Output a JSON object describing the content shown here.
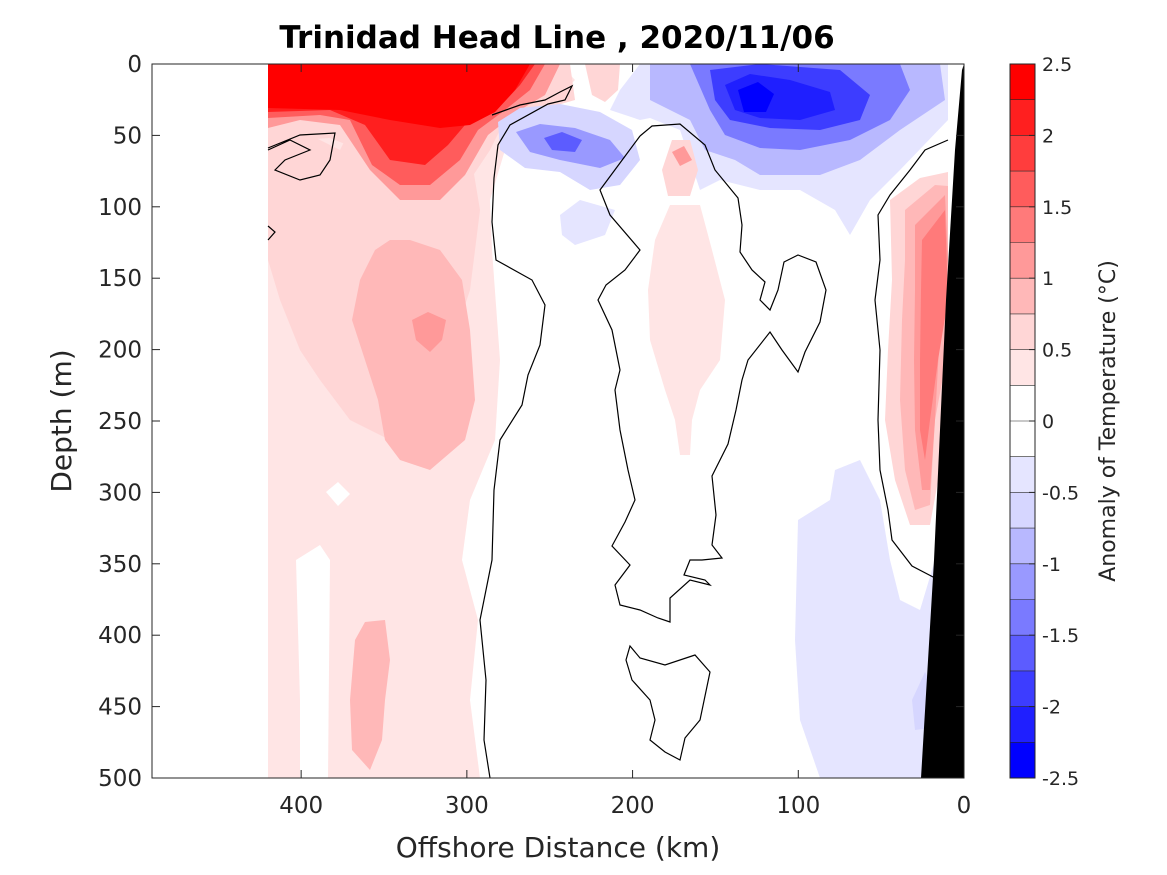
{
  "chart_data": {
    "type": "heatmap",
    "subtype": "filled-contour section",
    "title": "Trinidad Head Line , 2020/11/06",
    "xlabel": "Offshore Distance (km)",
    "ylabel": "Depth (m)",
    "xlim": [
      490,
      0
    ],
    "x_reversed": true,
    "ylim": [
      500,
      0
    ],
    "y_reversed": true,
    "xticks": [
      400,
      300,
      200,
      100,
      0
    ],
    "yticks": [
      0,
      50,
      100,
      150,
      200,
      250,
      300,
      350,
      400,
      450,
      500
    ],
    "colorbar": {
      "label": "Anomaly of Temperature (°C)",
      "limits": [
        -2.5,
        2.5
      ],
      "ticks": [
        2.5,
        2,
        1.5,
        1,
        0.5,
        0,
        -0.5,
        -1,
        -1.5,
        -2,
        -2.5
      ],
      "levels": [
        {
          "from": 2.25,
          "to": 2.5,
          "color": "#ff0000"
        },
        {
          "from": 2.0,
          "to": 2.25,
          "color": "#ff1f1f"
        },
        {
          "from": 1.75,
          "to": 2.0,
          "color": "#ff3d3d"
        },
        {
          "from": 1.5,
          "to": 1.75,
          "color": "#ff5c5c"
        },
        {
          "from": 1.25,
          "to": 1.5,
          "color": "#ff7a7a"
        },
        {
          "from": 1.0,
          "to": 1.25,
          "color": "#ff9999"
        },
        {
          "from": 0.75,
          "to": 1.0,
          "color": "#ffb8b8"
        },
        {
          "from": 0.5,
          "to": 0.75,
          "color": "#ffd6d6"
        },
        {
          "from": 0.25,
          "to": 0.5,
          "color": "#ffe5e5"
        },
        {
          "from": 0.0,
          "to": 0.25,
          "color": "#ffffff"
        },
        {
          "from": -0.25,
          "to": 0.0,
          "color": "#ffffff"
        },
        {
          "from": -0.5,
          "to": -0.25,
          "color": "#e5e5ff"
        },
        {
          "from": -0.75,
          "to": -0.5,
          "color": "#d6d6ff"
        },
        {
          "from": -1.0,
          "to": -0.75,
          "color": "#b8b8ff"
        },
        {
          "from": -1.25,
          "to": -1.0,
          "color": "#9999ff"
        },
        {
          "from": -1.5,
          "to": -1.25,
          "color": "#7a7aff"
        },
        {
          "from": -1.75,
          "to": -1.5,
          "color": "#5c5cff"
        },
        {
          "from": -2.0,
          "to": -1.75,
          "color": "#3d3dff"
        },
        {
          "from": -2.25,
          "to": -2.0,
          "color": "#1f1fff"
        },
        {
          "from": -2.5,
          "to": -2.25,
          "color": "#0000ff"
        }
      ]
    },
    "data_extent_km": [
      420,
      0
    ],
    "regions": [
      {
        "name": "surface warm core",
        "anomaly": 2.5,
        "x_range_km": [
          420,
          280
        ],
        "depth_range_m": [
          0,
          40
        ]
      },
      {
        "name": "subsurface warm lobe",
        "anomaly": 2.0,
        "x_range_km": [
          350,
          300
        ],
        "depth_range_m": [
          40,
          90
        ]
      },
      {
        "name": "warm column",
        "anomaly": 0.75,
        "x_range_km": [
          380,
          300
        ],
        "depth_range_m": [
          140,
          280
        ]
      },
      {
        "name": "warm patch",
        "anomaly": 1.0,
        "x_range_km": [
          335,
          315
        ],
        "depth_range_m": [
          170,
          200
        ]
      },
      {
        "name": "cold core near-surface",
        "anomaly": -2.0,
        "x_range_km": [
          140,
          110
        ],
        "depth_range_m": [
          10,
          40
        ]
      },
      {
        "name": "cold lens",
        "anomaly": -1.5,
        "x_range_km": [
          260,
          230
        ],
        "depth_range_m": [
          50,
          70
        ]
      },
      {
        "name": "shelf warm anomaly",
        "anomaly": 1.25,
        "x_range_km": [
          40,
          10
        ],
        "depth_range_m": [
          80,
          300
        ]
      },
      {
        "name": "deep cold patch",
        "anomaly": -0.5,
        "x_range_km": [
          100,
          30
        ],
        "depth_range_m": [
          330,
          500
        ]
      },
      {
        "name": "deep warm patch",
        "anomaly": 0.75,
        "x_range_km": [
          360,
          340
        ],
        "depth_range_m": [
          390,
          490
        ]
      }
    ],
    "contour_levels": [
      0
    ],
    "bathymetry_mask": {
      "color": "#000000",
      "bottom_x_km": [
        25,
        0
      ],
      "top_x_km": 0
    }
  },
  "text": {
    "title": "Trinidad Head Line , 2020/11/06",
    "xlabel": "Offshore Distance (km)",
    "ylabel": "Depth (m)",
    "cblabel": "Anomaly of Temperature (°C)"
  }
}
